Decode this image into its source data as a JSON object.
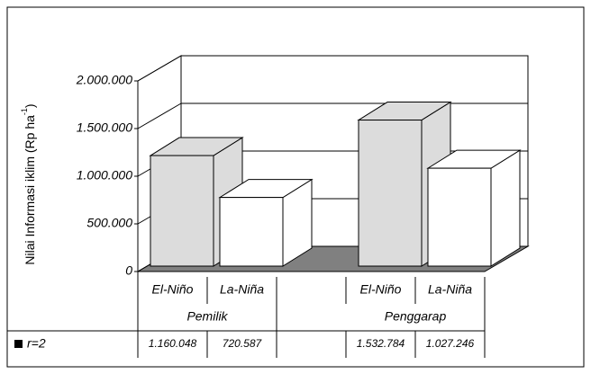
{
  "chart_data": {
    "type": "bar3d",
    "y_label": "Nilai Informasi iklim (Rp ha",
    "y_label_sup": "-1",
    "y_label_end": ")",
    "categories": [
      "El-Niño",
      "La-Niña",
      null,
      "El-Niño",
      "La-Niña"
    ],
    "group_labels": [
      "Pemilik",
      "Penggarap"
    ],
    "series": [
      {
        "name": "r=2",
        "color": "#000000",
        "values": [
          1160048,
          720587,
          null,
          1532784,
          1027246
        ],
        "value_labels": [
          "1.160.048",
          "720.587",
          null,
          "1.532.784",
          "1.027.246"
        ],
        "bar_colors": [
          "#dcdcdc",
          "#ffffff",
          null,
          "#dcdcdc",
          "#ffffff"
        ]
      }
    ],
    "ylim": [
      0,
      2000000
    ],
    "yticks": [
      0,
      {
        "value": 500000,
        "label": "500.000"
      },
      {
        "value": 1000000,
        "label": "1.000.000"
      },
      {
        "value": 1500000,
        "label": "1.500.000"
      },
      {
        "value": 2000000,
        "label": "2.000.000"
      }
    ],
    "grid": true,
    "floor_color": "#808080"
  }
}
